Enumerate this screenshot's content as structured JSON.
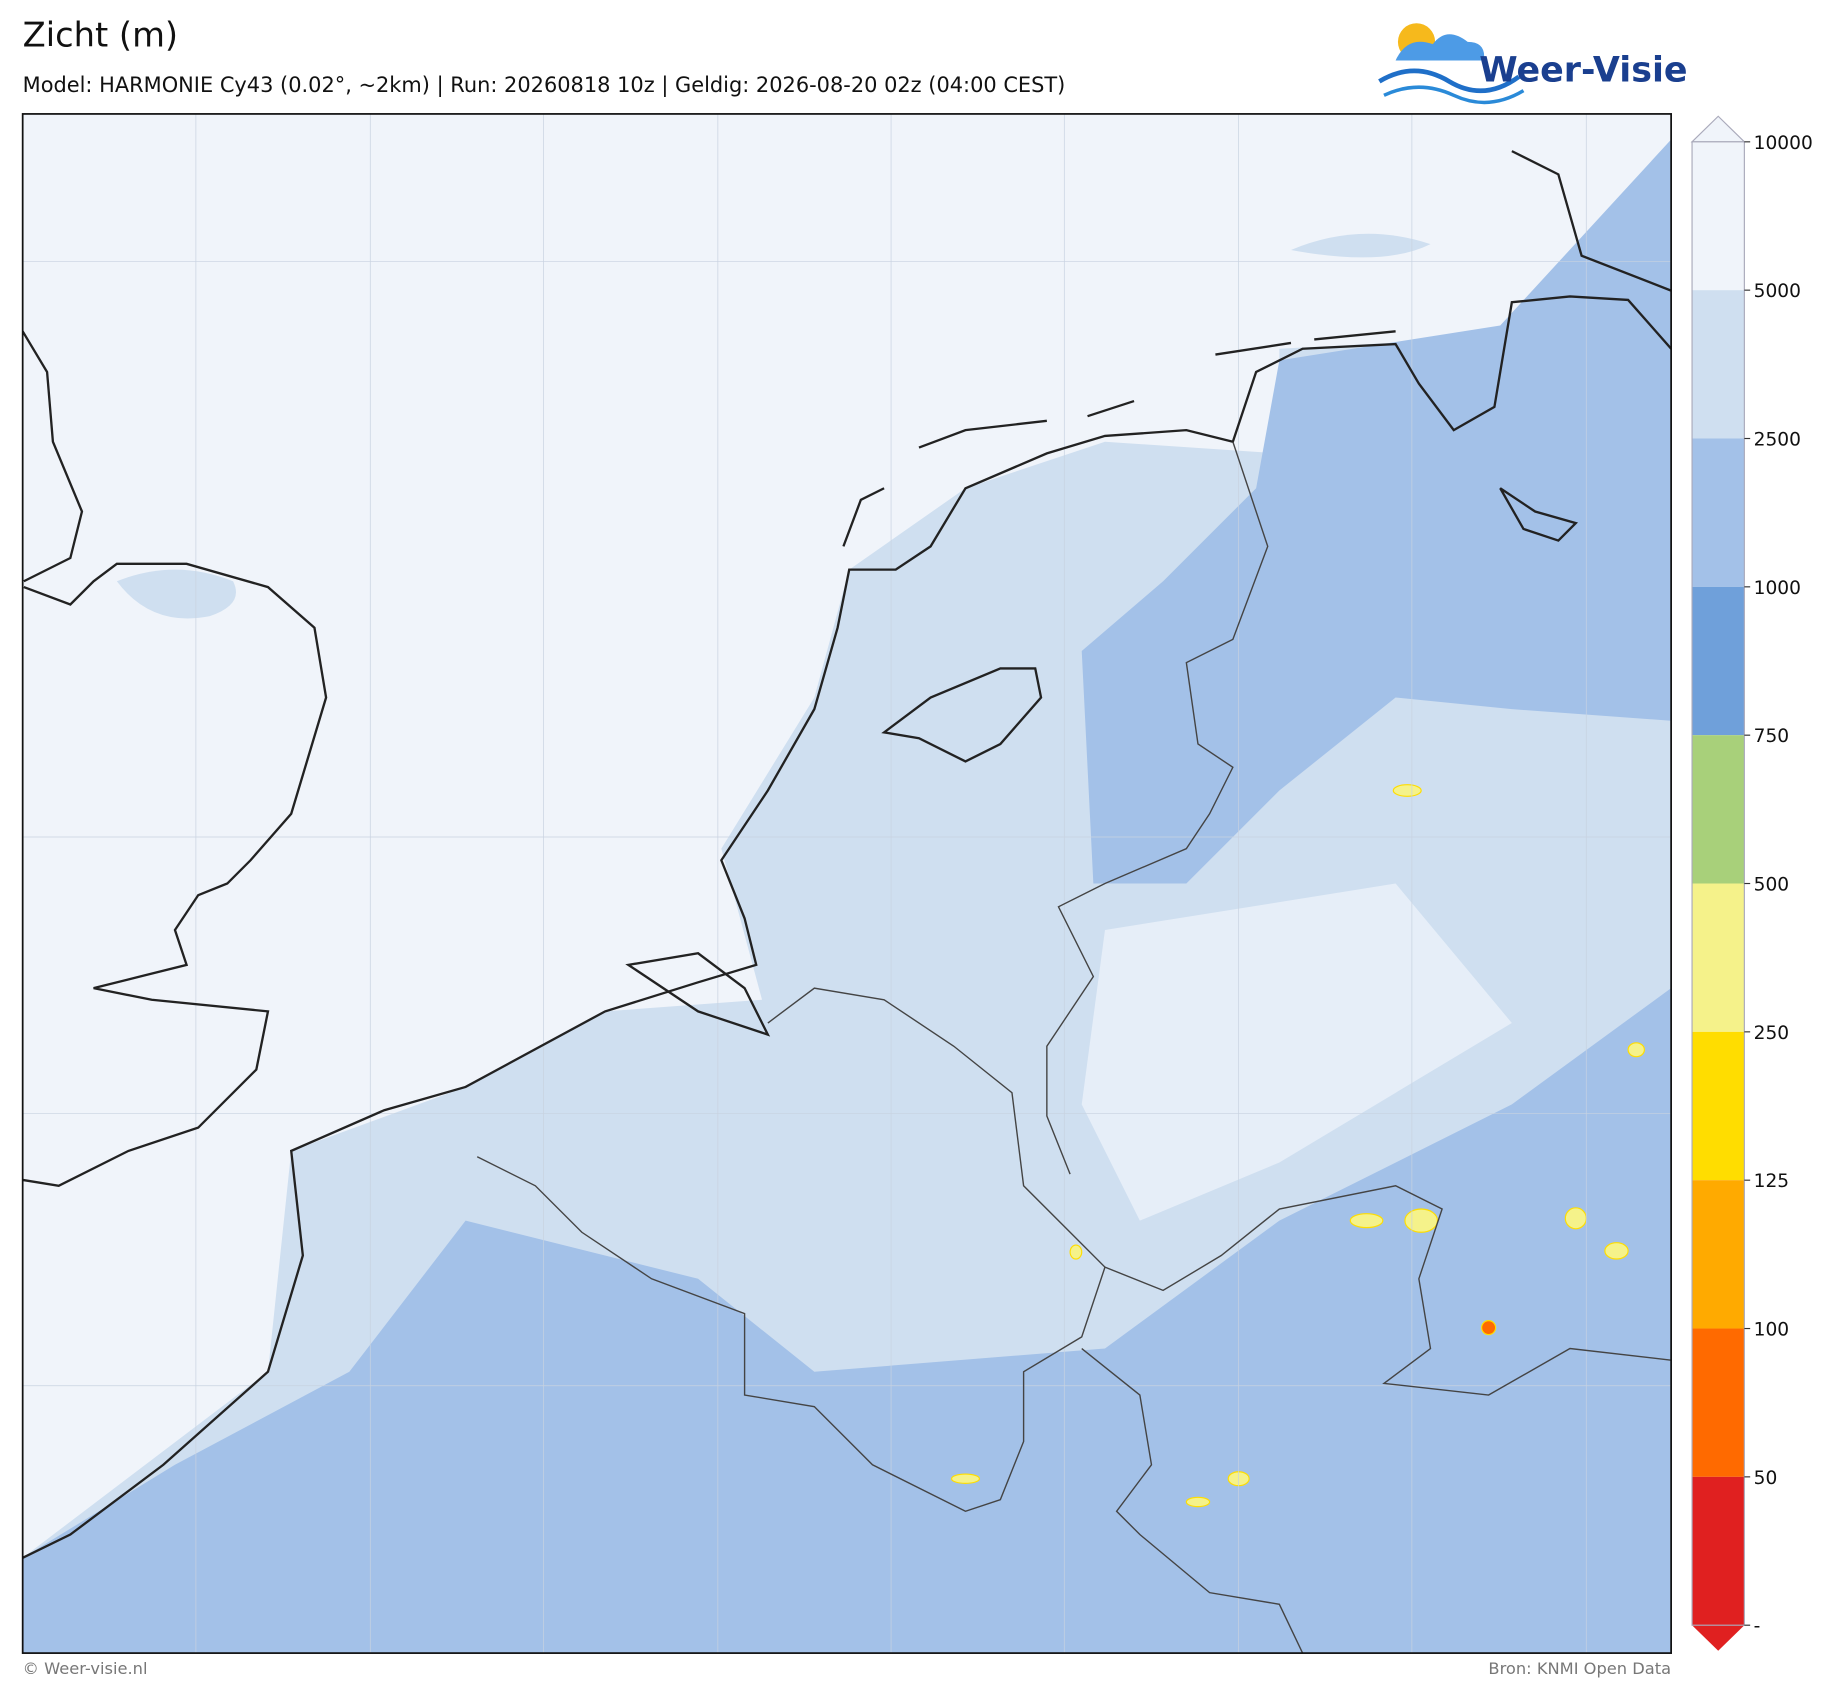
{
  "header": {
    "title": "Zicht (m)",
    "subtitle": "Model: HARMONIE Cy43 (0.02°, ~2km)  |  Run: 20260818 10z  |  Geldig: 2026-08-20 02z (04:00 CEST)"
  },
  "logo": {
    "text": "Weer-Visie"
  },
  "colorbar": {
    "ticks": [
      10000,
      5000,
      2500,
      1000,
      750,
      500,
      250,
      125,
      100,
      50,
      "-"
    ],
    "colors": [
      "#f0f4fa",
      "#cfdff0",
      "#a3c1e8",
      "#6fa0da",
      "#a8d07a",
      "#f5f28a",
      "#ffdd00",
      "#ffaa00",
      "#ff6a00",
      "#e02020"
    ]
  },
  "footer": {
    "left": "© Weer-visie.nl",
    "right": "Bron: KNMI Open Data"
  }
}
